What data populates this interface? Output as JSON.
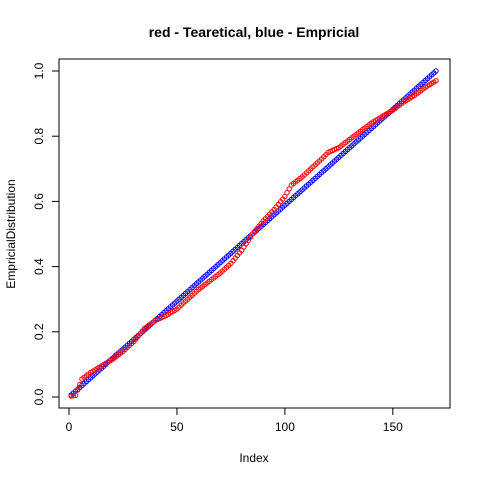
{
  "chart_data": {
    "type": "scatter",
    "title": "red - Tearetical, blue - Empricial",
    "xlabel": "Index",
    "ylabel": "EmpricialDistribution",
    "xlim": [
      0,
      172
    ],
    "ylim": [
      0,
      1.0
    ],
    "x_ticks": [
      0,
      50,
      100,
      150
    ],
    "x_tick_labels": [
      "0",
      "50",
      "100",
      "150"
    ],
    "y_ticks": [
      0.0,
      0.2,
      0.4,
      0.6,
      0.8,
      1.0
    ],
    "y_tick_labels": [
      "0.0",
      "0.2",
      "0.4",
      "0.6",
      "0.8",
      "1.0"
    ],
    "grid": false,
    "legend": "none",
    "n_points": 170,
    "series": [
      {
        "color": "#0000ff",
        "marker": "open-circle",
        "note_values_are_y_at_index": true,
        "values_rule": "i/170 for i = 1..170",
        "anchors": [
          [
            1,
            0.006
          ],
          [
            50,
            0.294
          ],
          [
            100,
            0.588
          ],
          [
            150,
            0.882
          ],
          [
            170,
            1.0
          ]
        ]
      },
      {
        "color": "#ff0000",
        "marker": "open-circle",
        "anchors": [
          [
            1,
            0.003
          ],
          [
            3,
            0.005
          ],
          [
            6,
            0.055
          ],
          [
            10,
            0.075
          ],
          [
            15,
            0.095
          ],
          [
            20,
            0.115
          ],
          [
            25,
            0.14
          ],
          [
            30,
            0.17
          ],
          [
            35,
            0.21
          ],
          [
            40,
            0.235
          ],
          [
            45,
            0.25
          ],
          [
            50,
            0.27
          ],
          [
            55,
            0.3
          ],
          [
            60,
            0.33
          ],
          [
            65,
            0.355
          ],
          [
            70,
            0.38
          ],
          [
            75,
            0.41
          ],
          [
            80,
            0.45
          ],
          [
            85,
            0.5
          ],
          [
            90,
            0.54
          ],
          [
            95,
            0.575
          ],
          [
            100,
            0.615
          ],
          [
            103,
            0.65
          ],
          [
            108,
            0.675
          ],
          [
            112,
            0.7
          ],
          [
            117,
            0.73
          ],
          [
            120,
            0.75
          ],
          [
            125,
            0.765
          ],
          [
            130,
            0.79
          ],
          [
            135,
            0.815
          ],
          [
            140,
            0.84
          ],
          [
            145,
            0.86
          ],
          [
            150,
            0.88
          ],
          [
            155,
            0.905
          ],
          [
            160,
            0.925
          ],
          [
            165,
            0.95
          ],
          [
            170,
            0.97
          ]
        ]
      }
    ]
  }
}
